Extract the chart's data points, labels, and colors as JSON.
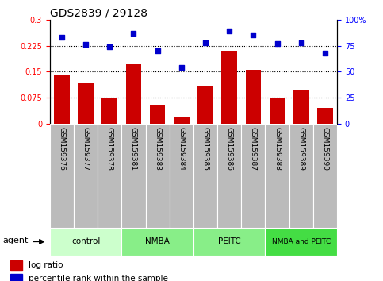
{
  "title": "GDS2839 / 29128",
  "samples": [
    "GSM159376",
    "GSM159377",
    "GSM159378",
    "GSM159381",
    "GSM159383",
    "GSM159384",
    "GSM159385",
    "GSM159386",
    "GSM159387",
    "GSM159388",
    "GSM159389",
    "GSM159390"
  ],
  "log_ratio": [
    0.14,
    0.118,
    0.072,
    0.172,
    0.055,
    0.02,
    0.11,
    0.21,
    0.155,
    0.075,
    0.095,
    0.046
  ],
  "percentile_rank": [
    83,
    76,
    74,
    87,
    70,
    54,
    78,
    89,
    85,
    77,
    78,
    68
  ],
  "bar_color": "#cc0000",
  "dot_color": "#0000cc",
  "ylim_left": [
    0,
    0.3
  ],
  "ylim_right": [
    0,
    100
  ],
  "yticks_left": [
    0,
    0.075,
    0.15,
    0.225,
    0.3
  ],
  "ytick_labels_left": [
    "0",
    "0.075",
    "0.15",
    "0.225",
    "0.3"
  ],
  "yticks_right": [
    0,
    25,
    50,
    75,
    100
  ],
  "ytick_labels_right": [
    "0",
    "25",
    "50",
    "75",
    "100%"
  ],
  "hlines": [
    0.075,
    0.15,
    0.225
  ],
  "groups": [
    {
      "label": "control",
      "start": 0,
      "end": 3,
      "color": "#ccffcc"
    },
    {
      "label": "NMBA",
      "start": 3,
      "end": 6,
      "color": "#88ee88"
    },
    {
      "label": "PEITC",
      "start": 6,
      "end": 9,
      "color": "#88ee88"
    },
    {
      "label": "NMBA and PEITC",
      "start": 9,
      "end": 12,
      "color": "#44dd44"
    }
  ],
  "tick_bg": "#bbbbbb",
  "legend_bar_label": "log ratio",
  "legend_dot_label": "percentile rank within the sample",
  "agent_label": "agent"
}
